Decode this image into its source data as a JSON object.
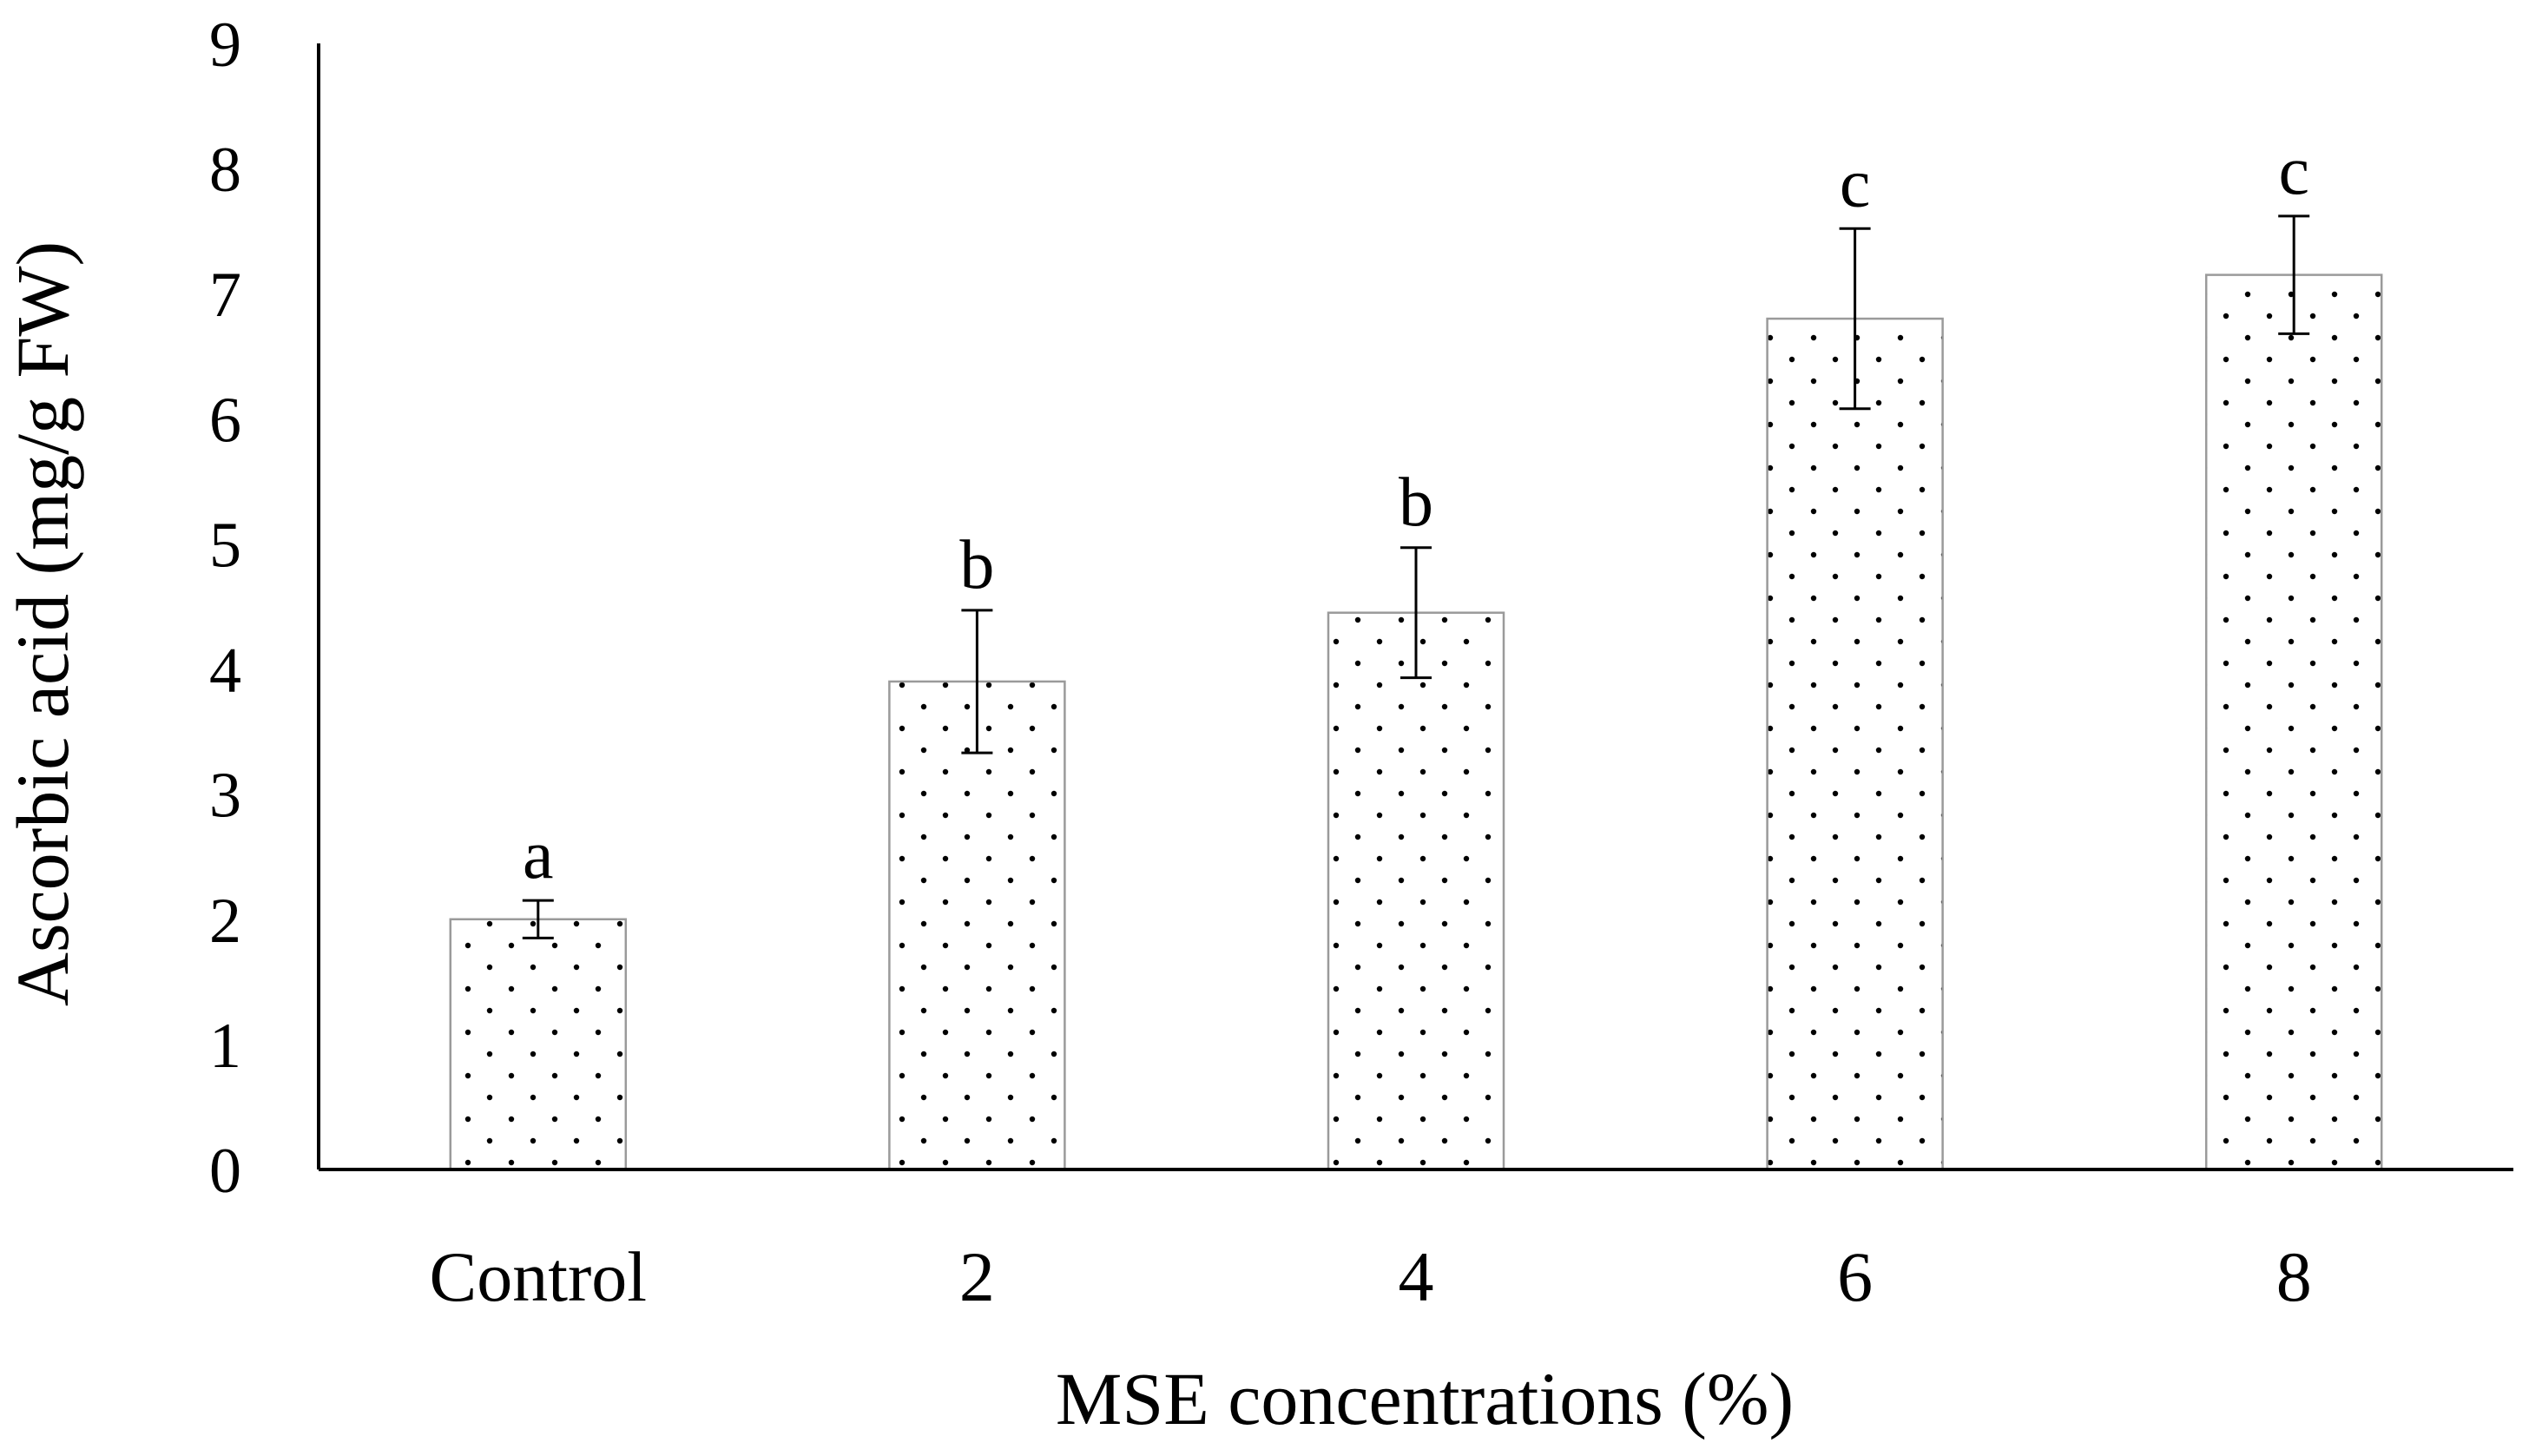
{
  "chart_data": {
    "type": "bar",
    "title": "",
    "xlabel": "MSE concentrations (%)",
    "ylabel": "Ascorbic acid (mg/g FW)",
    "ylim": [
      0,
      9
    ],
    "yticks": [
      "0",
      "1",
      "2",
      "3",
      "4",
      "5",
      "6",
      "7",
      "8",
      "9"
    ],
    "grid": false,
    "categories": [
      "Control",
      "2",
      "4",
      "6",
      "8"
    ],
    "values": [
      2.0,
      3.9,
      4.45,
      6.8,
      7.15
    ],
    "errors": [
      0.15,
      0.57,
      0.52,
      0.72,
      0.47
    ],
    "significance": [
      "a",
      "b",
      "b",
      "c",
      "c"
    ],
    "bar_fill": "dotted pattern",
    "colors": {
      "bar_border": "#9a9a9a",
      "dot": "#000000",
      "axis": "#000000",
      "error_bar": "#000000"
    }
  }
}
